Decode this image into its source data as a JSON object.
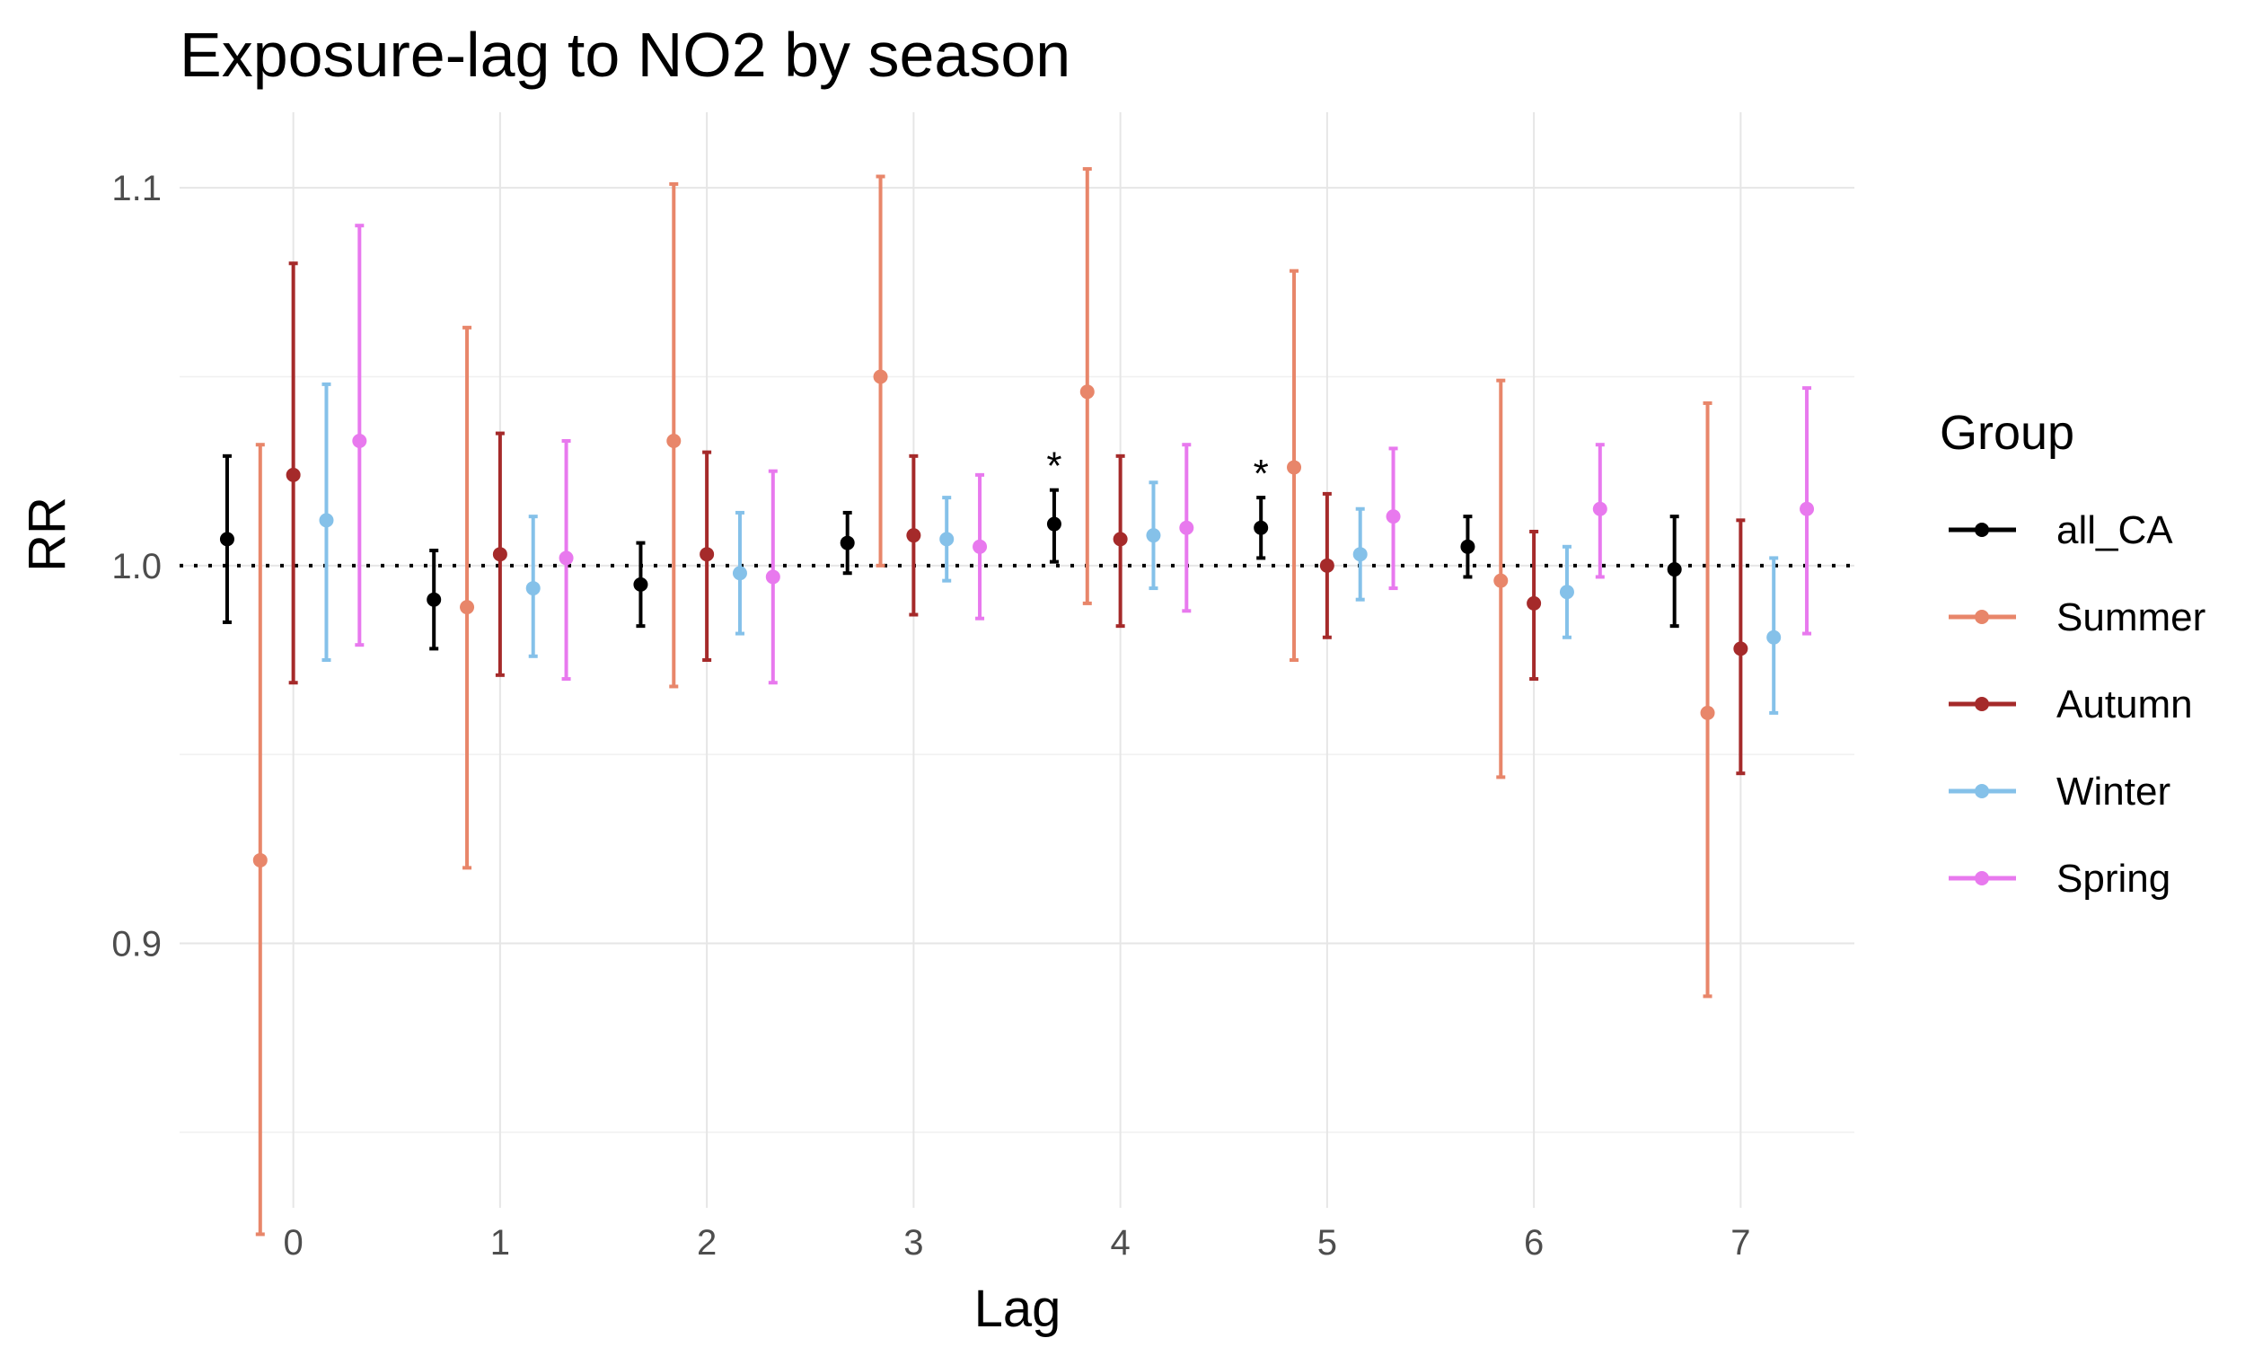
{
  "chart_data": {
    "type": "scatter",
    "title": "Exposure-lag to NO2 by season",
    "xlabel": "Lag",
    "ylabel": "RR",
    "x": [
      0,
      1,
      2,
      3,
      4,
      5,
      6,
      7
    ],
    "x_ticks": [
      "0",
      "1",
      "2",
      "3",
      "4",
      "5",
      "6",
      "7"
    ],
    "y_ticks": [
      "0.9",
      "1.0",
      "1.1"
    ],
    "xlim": [
      -0.55,
      7.55
    ],
    "ylim": [
      0.83,
      1.12
    ],
    "reference_line": 1.0,
    "grid": true,
    "legend": {
      "title": "Group",
      "position": "right"
    },
    "series": [
      {
        "name": "all_CA",
        "color": "#000000",
        "estimate": [
          1.007,
          0.991,
          0.995,
          1.006,
          1.011,
          1.01,
          1.005,
          0.999
        ],
        "lower": [
          0.985,
          0.978,
          0.984,
          0.998,
          1.001,
          1.002,
          0.997,
          0.984
        ],
        "upper": [
          1.029,
          1.004,
          1.006,
          1.014,
          1.02,
          1.018,
          1.013,
          1.013
        ]
      },
      {
        "name": "Summer",
        "color": "#E8866A",
        "estimate": [
          0.922,
          0.989,
          1.033,
          1.05,
          1.046,
          1.026,
          0.996,
          0.961
        ],
        "lower": [
          0.823,
          0.92,
          0.968,
          1.0,
          0.99,
          0.975,
          0.944,
          0.886
        ],
        "upper": [
          1.032,
          1.063,
          1.101,
          1.103,
          1.105,
          1.078,
          1.049,
          1.043
        ]
      },
      {
        "name": "Autumn",
        "color": "#A52A2A",
        "estimate": [
          1.024,
          1.003,
          1.003,
          1.008,
          1.007,
          1.0,
          0.99,
          0.978
        ],
        "lower": [
          0.969,
          0.971,
          0.975,
          0.987,
          0.984,
          0.981,
          0.97,
          0.945
        ],
        "upper": [
          1.08,
          1.035,
          1.03,
          1.029,
          1.029,
          1.019,
          1.009,
          1.012
        ]
      },
      {
        "name": "Winter",
        "color": "#85C1E9",
        "estimate": [
          1.012,
          0.994,
          0.998,
          1.007,
          1.008,
          1.003,
          0.993,
          0.981
        ],
        "lower": [
          0.975,
          0.976,
          0.982,
          0.996,
          0.994,
          0.991,
          0.981,
          0.961
        ],
        "upper": [
          1.048,
          1.013,
          1.014,
          1.018,
          1.022,
          1.015,
          1.005,
          1.002
        ]
      },
      {
        "name": "Spring",
        "color": "#E879EE",
        "estimate": [
          1.033,
          1.002,
          0.997,
          1.005,
          1.01,
          1.013,
          1.015,
          1.015
        ],
        "lower": [
          0.979,
          0.97,
          0.969,
          0.986,
          0.988,
          0.994,
          0.997,
          0.982
        ],
        "upper": [
          1.09,
          1.033,
          1.025,
          1.024,
          1.032,
          1.031,
          1.032,
          1.047
        ]
      }
    ],
    "annotations": [
      {
        "text": "*",
        "lag": 4,
        "series": "all_CA"
      },
      {
        "text": "*",
        "lag": 5,
        "series": "all_CA"
      }
    ]
  }
}
